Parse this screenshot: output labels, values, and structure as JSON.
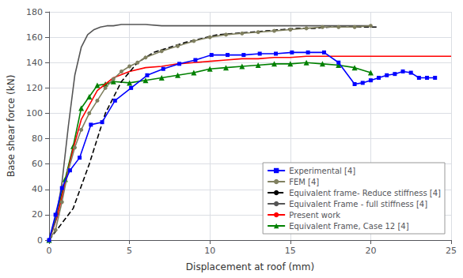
{
  "chart_data": {
    "type": "line",
    "title": "",
    "x_label": "Displacement at roof (mm)",
    "y_label": "Base shear force (kN)",
    "xlim": [
      0,
      25
    ],
    "ylim": [
      0,
      180
    ],
    "xticks": [
      0,
      5,
      10,
      15,
      20,
      25
    ],
    "yticks": [
      0,
      20,
      40,
      60,
      80,
      100,
      120,
      140,
      160,
      180
    ],
    "grid": true,
    "legend": "lower right",
    "series": [
      {
        "name": "Experimental [4]",
        "color": "#0000FF",
        "marker": "square",
        "line_style": "solid",
        "x": [
          0,
          0.4,
          0.8,
          1.3,
          1.9,
          2.6,
          3.3,
          4.1,
          5.1,
          6.1,
          7.1,
          8.1,
          9.1,
          10.1,
          11.1,
          12.1,
          13.1,
          14.1,
          15.1,
          16.1,
          17.1,
          18.0,
          19.0,
          19.5,
          20.0,
          20.5,
          21.0,
          21.5,
          22.0,
          22.5,
          23.0,
          23.5,
          24.0
        ],
        "values": [
          0,
          20,
          41,
          55,
          65,
          91,
          93,
          110,
          120,
          130,
          135,
          139,
          142,
          146,
          146,
          146,
          147,
          147,
          148,
          148,
          148,
          140,
          123,
          124,
          126,
          128,
          130,
          131,
          133,
          132,
          128,
          128,
          128
        ]
      },
      {
        "name": "FEM [4]",
        "color": "#808060",
        "marker": "circle",
        "line_style": "solid",
        "x": [
          0,
          0.4,
          0.8,
          1.2,
          1.6,
          2.0,
          2.5,
          3.0,
          3.5,
          4.0,
          4.5,
          5.0,
          5.5,
          6.0,
          7.0,
          8.0,
          9.0,
          10.0,
          11.0,
          12.0,
          13.0,
          14.0,
          15.0,
          16.0,
          17.0,
          18.0,
          19.0,
          20.0
        ],
        "values": [
          0,
          8,
          30,
          55,
          73,
          87,
          100,
          110,
          120,
          127,
          133,
          137,
          140,
          144,
          149,
          153,
          157,
          160,
          162,
          163,
          164,
          165,
          166,
          167,
          168,
          168,
          168,
          169
        ]
      },
      {
        "name": "Equivalent frame- Reduce stiffness [4]",
        "color": "#000000",
        "marker": "none",
        "line_style": "dashed",
        "x": [
          0,
          1.5,
          2.5,
          3.5,
          4.5,
          5.5,
          6.5,
          7.5,
          8.5,
          9.5,
          10.5,
          11.5,
          12.5,
          13.5,
          14.5,
          15.5,
          16.5,
          17.5,
          18.5,
          19.5,
          20.5
        ],
        "values": [
          0,
          25,
          60,
          100,
          125,
          140,
          148,
          152,
          156,
          159,
          162,
          163,
          164,
          165,
          166,
          167,
          167,
          168,
          168,
          168,
          168
        ]
      },
      {
        "name": "Equivalent Frame - full stiffness [4]",
        "color": "#555555",
        "marker": "none",
        "line_style": "solid",
        "x": [
          0,
          0.4,
          0.8,
          1.2,
          1.6,
          2.0,
          2.4,
          2.8,
          3.2,
          3.6,
          4.0,
          4.5,
          5.0,
          5.5,
          6.0,
          7.0,
          8.0,
          9.0,
          10.0,
          12.0,
          15.0,
          20.0
        ],
        "values": [
          0,
          15,
          45,
          90,
          130,
          152,
          162,
          166,
          168,
          169,
          169,
          170,
          170,
          170,
          170,
          169,
          169,
          169,
          169,
          169,
          169,
          169
        ]
      },
      {
        "name": "Present work",
        "color": "#FF0000",
        "marker": "none",
        "line_style": "solid",
        "x": [
          0,
          0.5,
          1.0,
          1.5,
          2.0,
          3.0,
          4.0,
          5.0,
          6.0,
          7.0,
          8.0,
          9.0,
          10.0,
          11.0,
          12.0,
          13.0,
          14.0,
          15.0,
          16.0,
          17.0,
          18.0,
          19.0,
          20.0,
          21.0,
          22.0,
          23.0,
          24.0,
          25.0
        ],
        "values": [
          0,
          18,
          45,
          72,
          95,
          118,
          128,
          133,
          136,
          137,
          139,
          140,
          141,
          142,
          143,
          143,
          144,
          144,
          145,
          145,
          145,
          145,
          145,
          145,
          145,
          145,
          145,
          145
        ]
      },
      {
        "name": "Equivalent Frame, Case 12 [4]",
        "color": "#008000",
        "marker": "triangle",
        "line_style": "solid",
        "x": [
          0,
          0.5,
          1.0,
          1.5,
          2.0,
          2.5,
          3.0,
          3.5,
          4.0,
          5.0,
          6.0,
          7.0,
          8.0,
          9.0,
          10.0,
          11.0,
          12.0,
          13.0,
          14.0,
          15.0,
          16.0,
          17.0,
          18.0,
          19.0,
          20.0
        ],
        "values": [
          0,
          22,
          48,
          74,
          104,
          113,
          122,
          123,
          125,
          124,
          126,
          128,
          130,
          132,
          135,
          136,
          137,
          138,
          139,
          139,
          140,
          139,
          138,
          136,
          132
        ]
      }
    ]
  }
}
